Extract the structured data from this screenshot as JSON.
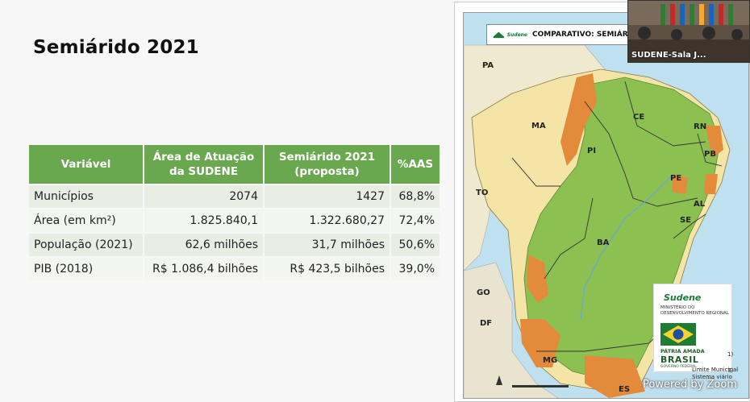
{
  "slide": {
    "title": "Semiárido 2021"
  },
  "table": {
    "headers": [
      "Variável",
      "Área de Atuação da SUDENE",
      "Semiárido 2021 (proposta)",
      "%AAS"
    ],
    "rows": [
      [
        "Municípios",
        "2074",
        "1427",
        "68,8%"
      ],
      [
        "Área (em km²)",
        "1.825.840,1",
        "1.322.680,27",
        "72,4%"
      ],
      [
        "População (2021)",
        "62,6 milhões",
        "31,7 milhões",
        "50,6%"
      ],
      [
        "PIB (2018)",
        "R$ 1.086,4 bilhões",
        "R$ 423,5 bilhões",
        "39,0%"
      ]
    ]
  },
  "map": {
    "title": "COMPARATIVO: SEMIÁRI",
    "logo_text": "Sudene",
    "states": [
      "PA",
      "MA",
      "CE",
      "RN",
      "PB",
      "PI",
      "PE",
      "AL",
      "SE",
      "TO",
      "BA",
      "GO",
      "DF",
      "MG",
      "ES"
    ],
    "colors": {
      "ocean": "#bfe0ef",
      "outside": "#f5edc6",
      "semiarido": "#8cc152",
      "sudene_area": "#f4e4a6",
      "removed": "#e38b3a"
    }
  },
  "video": {
    "caption": "SUDENE-Sala J..."
  },
  "logos": {
    "sudene": "Sudene",
    "ministry": "MINISTÉRIO DO DESENVOLVIMENTO REGIONAL",
    "patria": "PÁTRIA AMADA",
    "brasil": "BRASIL",
    "gov": "GOVERNO FEDERAL"
  },
  "legend": {
    "items": [
      "Limite Municipal",
      "Sistema viário"
    ],
    "side_marks": [
      "1)",
      "7)"
    ]
  },
  "watermark": "Powered by Zoom"
}
